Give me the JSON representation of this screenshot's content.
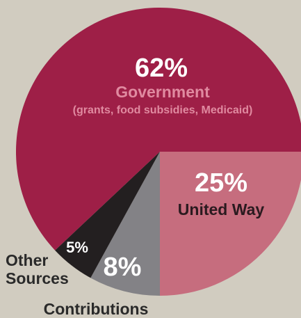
{
  "chart_data": {
    "type": "pie",
    "slices": [
      {
        "value": 62,
        "pct_label": "62%",
        "label": "Government",
        "sublabel": "(grants, food subsidies, Medicaid)",
        "color": "#9e1f47",
        "label_color": "#e08aa0",
        "pct_color": "#ffffff"
      },
      {
        "value": 25,
        "pct_label": "25%",
        "label": "United Way",
        "sublabel": "",
        "color": "#c66d7e",
        "label_color": "#2a1a1f",
        "pct_color": "#ffffff"
      },
      {
        "value": 8,
        "pct_label": "8%",
        "label": "Contributions",
        "sublabel": "",
        "color": "#838286",
        "label_color": "#2a2a2a",
        "pct_color": "#ffffff"
      },
      {
        "value": 5,
        "pct_label": "5%",
        "label": "Other Sources",
        "sublabel": "",
        "color": "#231f20",
        "label_color": "#2a2a2a",
        "pct_color": "#ffffff"
      }
    ]
  }
}
